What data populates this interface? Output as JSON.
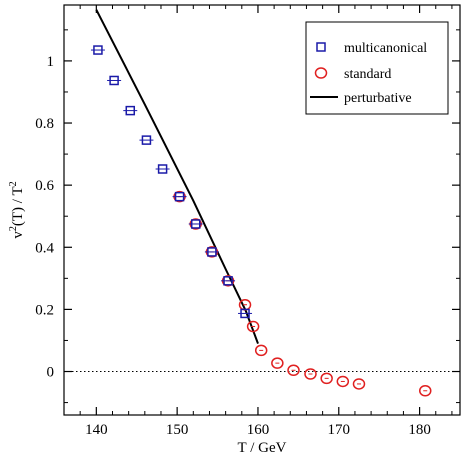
{
  "chart_data": {
    "type": "scatter",
    "title": "",
    "xlabel": "T / GeV",
    "ylabel_parts": {
      "v": "v",
      "sup1": "2",
      "mid": "(T) / T",
      "sup2": "2"
    },
    "xlim": [
      136,
      185
    ],
    "ylim": [
      -0.14,
      1.18
    ],
    "x_ticks": [
      140,
      150,
      160,
      170,
      180
    ],
    "y_ticks": [
      0,
      0.2,
      0.4,
      0.6,
      0.8,
      1
    ],
    "x_tick_labels": [
      "140",
      "150",
      "160",
      "170",
      "180"
    ],
    "y_tick_labels": [
      "0",
      "0.2",
      "0.4",
      "0.6",
      "0.8",
      "1"
    ],
    "grid": false,
    "zero_line": {
      "y": 0,
      "style": "dotted"
    },
    "legend": {
      "placement": "top-right",
      "entries": [
        "multicanonical",
        "standard",
        "perturbative"
      ]
    },
    "series": [
      {
        "name": "multicanonical",
        "marker": "square",
        "color": "#1a1aa8",
        "points": [
          [
            140.2,
            1.035
          ],
          [
            142.2,
            0.937
          ],
          [
            144.2,
            0.84
          ],
          [
            146.2,
            0.745
          ],
          [
            148.2,
            0.652
          ],
          [
            150.3,
            0.563
          ],
          [
            152.3,
            0.475
          ],
          [
            154.3,
            0.385
          ],
          [
            156.3,
            0.292
          ],
          [
            158.4,
            0.187
          ]
        ]
      },
      {
        "name": "standard",
        "marker": "circle",
        "color": "#e02020",
        "points": [
          [
            150.3,
            0.563
          ],
          [
            152.3,
            0.475
          ],
          [
            154.3,
            0.385
          ],
          [
            156.3,
            0.292
          ],
          [
            158.4,
            0.215
          ],
          [
            159.4,
            0.145
          ],
          [
            160.4,
            0.068
          ],
          [
            162.4,
            0.027
          ],
          [
            164.4,
            0.004
          ],
          [
            166.5,
            -0.008
          ],
          [
            168.5,
            -0.022
          ],
          [
            170.5,
            -0.032
          ],
          [
            172.5,
            -0.04
          ],
          [
            180.7,
            -0.062
          ]
        ]
      },
      {
        "name": "perturbative",
        "marker": "line",
        "color": "#000000",
        "points": [
          [
            140.0,
            1.165
          ],
          [
            146.0,
            0.86
          ],
          [
            152.0,
            0.55
          ],
          [
            156.0,
            0.33
          ],
          [
            158.5,
            0.195
          ],
          [
            160.0,
            0.09
          ]
        ]
      }
    ]
  }
}
